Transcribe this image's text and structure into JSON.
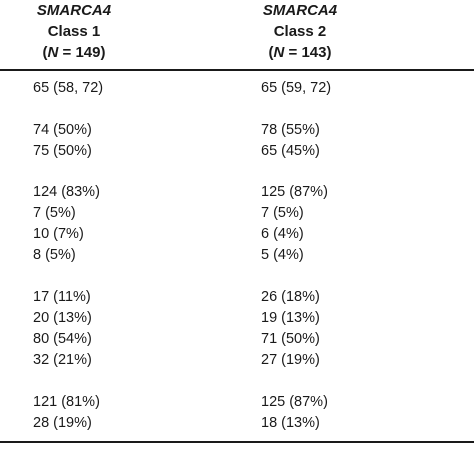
{
  "table": {
    "columns": [
      {
        "gene": "SMARCA4",
        "class": "Class 1",
        "n_prefix": "(",
        "n_var": "N",
        "n_suffix": " = 149)"
      },
      {
        "gene": "SMARCA4",
        "class": "Class 2",
        "n_prefix": "(",
        "n_var": "N",
        "n_suffix": " = 143)"
      }
    ],
    "rows": [
      [
        "65 (58, 72)",
        "65 (59, 72)"
      ],
      [
        "74 (50%)",
        "78 (55%)"
      ],
      [
        "75 (50%)",
        "65 (45%)"
      ],
      [
        "124 (83%)",
        "125 (87%)"
      ],
      [
        "7 (5%)",
        "7 (5%)"
      ],
      [
        "10 (7%)",
        "6 (4%)"
      ],
      [
        "8 (5%)",
        "5 (4%)"
      ],
      [
        "17 (11%)",
        "26 (18%)"
      ],
      [
        "20 (13%)",
        "19 (13%)"
      ],
      [
        "80 (54%)",
        "71 (50%)"
      ],
      [
        "32 (21%)",
        "27 (19%)"
      ],
      [
        "121 (81%)",
        "125 (87%)"
      ],
      [
        "28 (19%)",
        "18 (13%)"
      ]
    ]
  }
}
